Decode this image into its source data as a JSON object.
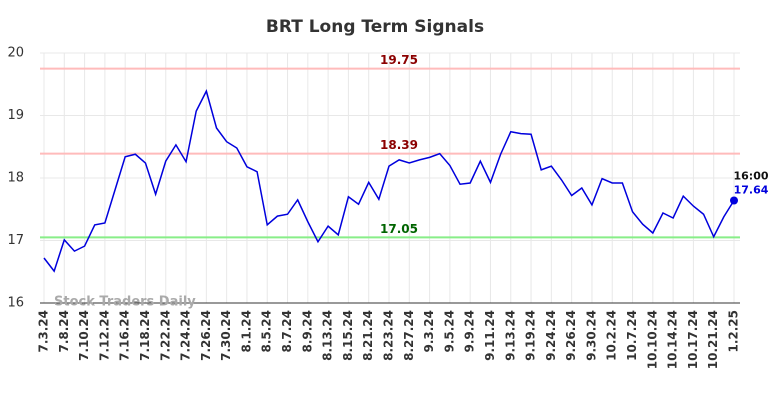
{
  "chart_data": {
    "type": "line",
    "title": "BRT Long Term Signals",
    "categories": [
      "7.3.24",
      null,
      "7.8.24",
      null,
      "7.10.24",
      null,
      "7.12.24",
      null,
      "7.16.24",
      null,
      "7.18.24",
      null,
      "7.22.24",
      null,
      "7.24.24",
      null,
      "7.26.24",
      null,
      "7.30.24",
      null,
      "8.1.24",
      null,
      "8.5.24",
      null,
      "8.7.24",
      null,
      "8.9.24",
      null,
      "8.13.24",
      null,
      "8.15.24",
      null,
      "8.21.24",
      null,
      "8.23.24",
      null,
      "8.27.24",
      null,
      "9.3.24",
      null,
      "9.5.24",
      null,
      "9.9.24",
      null,
      "9.11.24",
      null,
      "9.13.24",
      null,
      "9.19.24",
      null,
      "9.24.24",
      null,
      "9.26.24",
      null,
      "9.30.24",
      null,
      "10.2.24",
      null,
      "10.7.24",
      null,
      "10.10.24",
      null,
      "10.14.24",
      null,
      "10.17.24",
      null,
      "10.21.24",
      null,
      "1.2.25"
    ],
    "series": [
      {
        "color": "#0000dd",
        "values": [
          16.72,
          16.51,
          17.01,
          16.83,
          16.91,
          17.25,
          17.28,
          17.81,
          18.34,
          18.38,
          18.24,
          17.74,
          18.27,
          18.53,
          18.26,
          19.07,
          19.39,
          18.8,
          18.58,
          18.48,
          18.18,
          18.1,
          17.25,
          17.39,
          17.42,
          17.65,
          17.3,
          16.98,
          17.23,
          17.09,
          17.7,
          17.58,
          17.93,
          17.66,
          18.19,
          18.29,
          18.24,
          18.29,
          18.33,
          18.39,
          18.2,
          17.9,
          17.92,
          18.27,
          17.93,
          18.38,
          18.74,
          18.71,
          18.7,
          18.13,
          18.19,
          17.97,
          17.72,
          17.84,
          17.57,
          17.99,
          17.92,
          17.92,
          17.46,
          17.26,
          17.12,
          17.44,
          17.36,
          17.71,
          17.55,
          17.42,
          17.06,
          17.38,
          17.64
        ]
      }
    ],
    "hlines": [
      {
        "value": 19.75,
        "color": "#ffbbbb",
        "label_color": "#8b0000"
      },
      {
        "value": 18.39,
        "color": "#ffbbbb",
        "label_color": "#8b0000"
      },
      {
        "value": 17.05,
        "color": "#88ee88",
        "label_color": "#006400"
      }
    ],
    "last_point_time": "16:00",
    "watermark": "Stock Traders Daily",
    "ylim": [
      16,
      20
    ],
    "yticks": [
      16,
      17,
      18,
      19,
      20
    ],
    "grid": true
  }
}
